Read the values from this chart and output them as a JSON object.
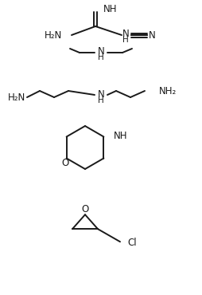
{
  "background": "#ffffff",
  "line_color": "#1a1a1a",
  "font_size": 8.5,
  "bond_width": 1.4,
  "fig_w": 2.54,
  "fig_h": 3.7,
  "dpi": 100,
  "molecules": {
    "cyanoguanidine": {
      "comment": "H2N-C(=NH)-NH-C#N, top section y~310-355"
    },
    "dimethylamine": {
      "comment": "CH3-NH-CH3, y~280"
    },
    "diethylenetriamine": {
      "comment": "H2N-CC-NH-CC-NH2, y~228"
    },
    "morpholine": {
      "comment": "6-membered ring O+NH, center ~(110,175)"
    },
    "epichlorohydrin": {
      "comment": "3-membered ring O + CH2Cl, center ~(110,85)"
    }
  }
}
